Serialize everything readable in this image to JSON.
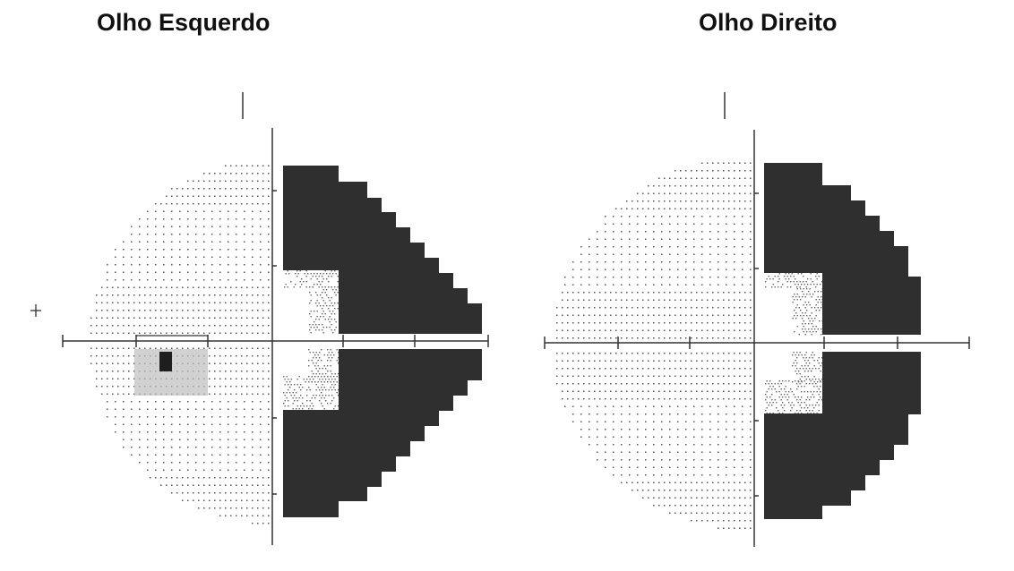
{
  "panels": [
    {
      "title": "Olho Esquerdo",
      "eye": "left",
      "defect": "right hemifield loss, blind spot temporal"
    },
    {
      "title": "Olho Direito",
      "eye": "right",
      "defect": "right hemifield loss"
    }
  ],
  "colors": {
    "defect": "#2f2f2f",
    "dots": "#555555",
    "axis": "#333333",
    "background": "#ffffff"
  }
}
